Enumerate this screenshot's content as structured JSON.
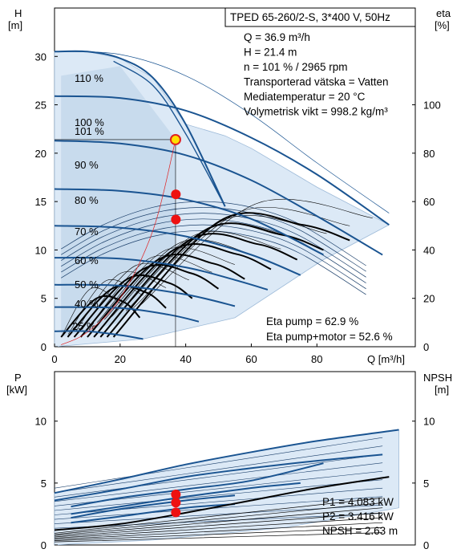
{
  "chart_data": [
    {
      "type": "line",
      "title": "TPED 65-260/2-S, 3*400 V, 50Hz",
      "ylabel_left": "H",
      "ylabel_left_unit": "[m]",
      "ylabel_right": "eta",
      "ylabel_right_unit": "[%]",
      "xlabel": "Q [m³/h]",
      "xlim": [
        0,
        110
      ],
      "ylim": [
        0,
        35
      ],
      "ylim_right": [
        0,
        140
      ],
      "x_ticks": [
        "0",
        "20",
        "40",
        "60",
        "80"
      ],
      "y_ticks": [
        "0",
        "5",
        "10",
        "15",
        "20",
        "25",
        "30"
      ],
      "y_right_ticks": [
        "0",
        "20",
        "40",
        "60",
        "80",
        "100"
      ],
      "curve_labels": [
        "110 %",
        "100 %",
        "101 %",
        "90 %",
        "80 %",
        "70 %",
        "60 %",
        "50 %",
        "40 %",
        "25 %"
      ],
      "info_lines": [
        "Q = 36.9 m³/h",
        "H = 21.4 m",
        "n = 101 % / 2965 rpm",
        "Transporterad vätska = Vatten",
        "Mediatemperatur = 20 °C",
        "Volymetrisk vikt = 998.2 kg/m³"
      ],
      "eta_lines": [
        "Eta pump = 62.9 %",
        "Eta pump+motor = 52.6 %"
      ],
      "duty_point": {
        "Q": 36.9,
        "H": 21.4
      },
      "eta_points": [
        {
          "Q": 37,
          "eta": 63
        },
        {
          "Q": 37,
          "eta": 52.6
        }
      ],
      "series": [
        {
          "speed": "110 %",
          "Q": [
            0,
            10,
            20,
            30,
            40,
            52
          ],
          "H": [
            30.5,
            30.5,
            29.8,
            27.8,
            23,
            14.5
          ]
        },
        {
          "speed": "101 %",
          "Q": [
            0,
            20,
            40,
            60,
            80,
            102
          ],
          "H": [
            25.9,
            25.7,
            24.4,
            21.6,
            17.8,
            12.6
          ]
        },
        {
          "speed": "90 %",
          "Q": [
            0,
            20,
            40,
            60,
            80,
            100
          ],
          "H": [
            21.3,
            21,
            19.8,
            17.2,
            13.5,
            9.5
          ]
        },
        {
          "speed": "80 %",
          "Q": [
            0,
            20,
            40,
            60,
            82
          ],
          "H": [
            16.3,
            16.1,
            15.2,
            13.2,
            9.5
          ]
        },
        {
          "speed": "70 %",
          "Q": [
            0,
            20,
            40,
            60,
            75
          ],
          "H": [
            12.5,
            12.3,
            11.4,
            9.5,
            7.4
          ]
        },
        {
          "speed": "60 %",
          "Q": [
            0,
            20,
            40,
            55,
            65
          ],
          "H": [
            9.2,
            9.1,
            8.2,
            6.9,
            5.9
          ]
        },
        {
          "speed": "50 %",
          "Q": [
            0,
            20,
            40,
            55
          ],
          "H": [
            6.4,
            6.3,
            5.4,
            4.2
          ]
        },
        {
          "speed": "40 %",
          "Q": [
            0,
            20,
            35,
            44
          ],
          "H": [
            4.1,
            4,
            3.3,
            2.6
          ]
        },
        {
          "speed": "25 %",
          "Q": [
            0,
            10,
            20,
            27
          ],
          "H": [
            1.6,
            1.6,
            1.2,
            0.8
          ]
        }
      ]
    },
    {
      "type": "line",
      "ylabel_left": "P",
      "ylabel_left_unit": "[kW]",
      "ylabel_right": "NPSH",
      "ylabel_right_unit": "[m]",
      "xlim": [
        0,
        110
      ],
      "ylim": [
        0,
        14
      ],
      "x_ticks": [],
      "y_ticks": [
        "0",
        "5",
        "10"
      ],
      "y_right_ticks": [
        "0",
        "5",
        "10"
      ],
      "info_lines": [
        "P1 = 4.083 kW",
        "P2 = 3.416 kW",
        "NPSH = 2.63 m"
      ],
      "points": [
        {
          "Q": 37,
          "P": 4.083
        },
        {
          "Q": 37,
          "P": 3.416
        },
        {
          "Q": 37,
          "P": 2.63
        }
      ],
      "series": [
        {
          "name": "P1 max",
          "Q": [
            0,
            20,
            40,
            60,
            80,
            105
          ],
          "P": [
            4.2,
            5.3,
            6.5,
            7.5,
            8.4,
            9.3
          ]
        },
        {
          "name": "P2 max",
          "Q": [
            0,
            20,
            40,
            60,
            80,
            100
          ],
          "P": [
            3.6,
            4.5,
            5.5,
            6.2,
            6.8,
            7.3
          ]
        },
        {
          "name": "P1 101%",
          "Q": [
            5,
            20,
            40,
            60,
            82
          ],
          "P": [
            3.1,
            3.8,
            4.5,
            5.2,
            6.6
          ]
        },
        {
          "name": "P2 101%",
          "Q": [
            5,
            20,
            40,
            60,
            75
          ],
          "P": [
            2.5,
            3.1,
            3.9,
            4.6,
            5
          ]
        },
        {
          "name": "P1 90%",
          "Q": [
            5,
            20,
            40,
            55
          ],
          "P": [
            2.2,
            2.9,
            3.6,
            4
          ]
        },
        {
          "name": "P2 90%",
          "Q": [
            5,
            20,
            40,
            55
          ],
          "P": [
            1.8,
            2.3,
            3,
            3.3
          ]
        },
        {
          "name": "NPSH",
          "Q": [
            0,
            20,
            40,
            60,
            80,
            102
          ],
          "NPSH": [
            1.2,
            1.7,
            2.6,
            3.6,
            4.6,
            5.5
          ]
        }
      ]
    }
  ]
}
